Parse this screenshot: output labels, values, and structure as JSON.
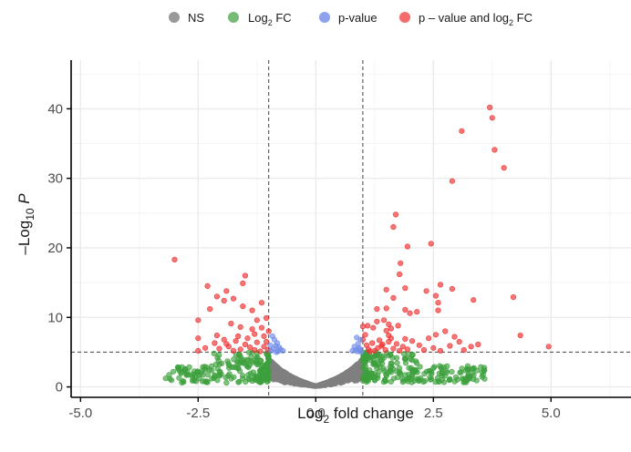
{
  "chart_data": {
    "type": "scatter",
    "title": "",
    "xlabel": "Log2 fold change",
    "ylabel": "-Log10 P",
    "xlim": [
      -5.2,
      6.7
    ],
    "ylim": [
      -1.5,
      47
    ],
    "x_ticks": [
      -5.0,
      -2.5,
      0.0,
      2.5,
      5.0
    ],
    "x_tick_labels": [
      "-5.0",
      "-2.5",
      "0.0",
      "2.5",
      "5.0"
    ],
    "y_ticks": [
      0,
      10,
      20,
      30,
      40
    ],
    "y_tick_labels": [
      "0",
      "10",
      "20",
      "30",
      "40"
    ],
    "grid": true,
    "legend_position": "top",
    "cutoffs": {
      "log2fc": [
        -1,
        1
      ],
      "neg_log10_p": 5
    },
    "legend": [
      {
        "key": "ns",
        "label": "NS",
        "color": "#808080"
      },
      {
        "key": "fc",
        "label": "Log2 FC",
        "label_main": "Log",
        "label_sub": "2",
        "label_tail": " FC",
        "color": "#3ca03c"
      },
      {
        "key": "p",
        "label": "p-value",
        "color": "#6f8be8"
      },
      {
        "key": "both",
        "label": "p – value and log2 FC",
        "label_main": "p – value and log",
        "label_sub": "2",
        "label_tail": " FC",
        "color": "#ee2c2c"
      }
    ],
    "series": [
      {
        "key": "both",
        "points": [
          [
            3.7,
            40.2
          ],
          [
            3.75,
            38.7
          ],
          [
            3.8,
            34.1
          ],
          [
            4.0,
            31.5
          ],
          [
            3.1,
            36.8
          ],
          [
            2.9,
            29.6
          ],
          [
            1.7,
            24.8
          ],
          [
            1.65,
            23.0
          ],
          [
            2.45,
            20.6
          ],
          [
            1.95,
            20.2
          ],
          [
            1.8,
            17.8
          ],
          [
            1.78,
            16.2
          ],
          [
            2.65,
            14.7
          ],
          [
            1.9,
            14.2
          ],
          [
            1.5,
            14.0
          ],
          [
            2.35,
            13.8
          ],
          [
            1.65,
            12.8
          ],
          [
            2.6,
            12.1
          ],
          [
            2.9,
            14.1
          ],
          [
            2.55,
            13.1
          ],
          [
            3.35,
            12.5
          ],
          [
            4.2,
            12.9
          ],
          [
            2.6,
            11.0
          ],
          [
            1.9,
            11.1
          ],
          [
            2.0,
            10.6
          ],
          [
            2.15,
            10.8
          ],
          [
            1.5,
            11.3
          ],
          [
            1.3,
            11.2
          ],
          [
            1.45,
            9.6
          ],
          [
            1.55,
            9.0
          ],
          [
            1.6,
            8.4
          ],
          [
            1.75,
            8.8
          ],
          [
            1.5,
            8.1
          ],
          [
            1.55,
            7.4
          ],
          [
            1.3,
            9.4
          ],
          [
            1.22,
            8.5
          ],
          [
            1.1,
            8.8
          ],
          [
            1.0,
            8.7
          ],
          [
            1.05,
            7.5
          ],
          [
            1.0,
            6.8
          ],
          [
            1.08,
            6.0
          ],
          [
            1.12,
            5.4
          ],
          [
            1.25,
            5.2
          ],
          [
            1.2,
            6.3
          ],
          [
            1.35,
            6.7
          ],
          [
            1.55,
            6.5
          ],
          [
            1.4,
            5.9
          ],
          [
            1.48,
            5.3
          ],
          [
            1.65,
            5.5
          ],
          [
            1.72,
            6.2
          ],
          [
            1.85,
            5.8
          ],
          [
            1.95,
            5.4
          ],
          [
            2.05,
            6.6
          ],
          [
            2.2,
            6.0
          ],
          [
            2.4,
            7.0
          ],
          [
            2.55,
            7.5
          ],
          [
            2.75,
            8.0
          ],
          [
            2.95,
            7.2
          ],
          [
            3.05,
            6.5
          ],
          [
            2.85,
            5.9
          ],
          [
            2.5,
            5.6
          ],
          [
            2.3,
            5.3
          ],
          [
            3.3,
            5.8
          ],
          [
            3.45,
            6.1
          ],
          [
            4.35,
            7.4
          ],
          [
            4.95,
            5.8
          ],
          [
            2.65,
            5.2
          ],
          [
            3.15,
            5.3
          ],
          [
            1.15,
            5.1
          ],
          [
            1.32,
            5.6
          ],
          [
            1.42,
            6.1
          ],
          [
            1.6,
            7.0
          ],
          [
            1.78,
            5.2
          ],
          [
            1.9,
            6.9
          ],
          [
            -3.0,
            18.3
          ],
          [
            -2.3,
            14.5
          ],
          [
            -1.5,
            16.0
          ],
          [
            -1.55,
            14.9
          ],
          [
            -1.9,
            13.8
          ],
          [
            -2.1,
            13.0
          ],
          [
            -1.95,
            12.4
          ],
          [
            -1.75,
            12.7
          ],
          [
            -1.15,
            12.1
          ],
          [
            -1.55,
            11.6
          ],
          [
            -1.35,
            11.0
          ],
          [
            -2.25,
            11.2
          ],
          [
            -2.5,
            9.6
          ],
          [
            -1.8,
            9.1
          ],
          [
            -1.25,
            9.6
          ],
          [
            -1.05,
            9.9
          ],
          [
            -1.6,
            8.6
          ],
          [
            -1.35,
            8.3
          ],
          [
            -1.15,
            8.5
          ],
          [
            -1.0,
            8.0
          ],
          [
            -1.3,
            7.6
          ],
          [
            -1.1,
            7.3
          ],
          [
            -1.45,
            7.0
          ],
          [
            -1.7,
            6.6
          ],
          [
            -1.95,
            6.8
          ],
          [
            -2.5,
            7.0
          ],
          [
            -2.15,
            6.3
          ],
          [
            -1.25,
            6.4
          ],
          [
            -1.05,
            6.5
          ],
          [
            -1.5,
            6.1
          ],
          [
            -1.85,
            5.8
          ],
          [
            -2.05,
            5.5
          ],
          [
            -1.6,
            5.4
          ],
          [
            -1.3,
            5.3
          ],
          [
            -1.1,
            5.8
          ],
          [
            -2.35,
            5.6
          ],
          [
            -2.5,
            5.2
          ],
          [
            -1.75,
            5.2
          ],
          [
            -1.4,
            5.7
          ],
          [
            -1.02,
            5.3
          ],
          [
            -1.18,
            5.1
          ],
          [
            -1.9,
            6.2
          ],
          [
            -2.1,
            7.4
          ],
          [
            -1.65,
            7.3
          ]
        ]
      },
      {
        "key": "p",
        "points": [
          [
            -0.95,
            5.2
          ],
          [
            -0.9,
            5.5
          ],
          [
            -0.85,
            5.9
          ],
          [
            -0.82,
            6.3
          ],
          [
            -0.88,
            6.8
          ],
          [
            -0.8,
            5.1
          ],
          [
            -0.75,
            5.4
          ],
          [
            -0.7,
            5.2
          ],
          [
            -0.92,
            7.3
          ],
          [
            -0.97,
            6.0
          ],
          [
            -0.78,
            5.7
          ],
          [
            -0.84,
            5.0
          ],
          [
            0.88,
            5.1
          ],
          [
            0.92,
            5.6
          ],
          [
            0.85,
            5.3
          ],
          [
            0.9,
            6.2
          ],
          [
            0.95,
            6.8
          ],
          [
            0.82,
            5.8
          ],
          [
            0.78,
            5.2
          ],
          [
            0.96,
            5.0
          ],
          [
            0.87,
            7.1
          ],
          [
            0.93,
            5.4
          ]
        ]
      }
    ],
    "generated_groups": [
      {
        "key": "ns",
        "count": 2300,
        "x_range": [
          -1.0,
          1.0
        ],
        "y_model": "vcurve",
        "description": "dense V-shaped cloud of non-significant genes"
      },
      {
        "key": "fc",
        "count": 430,
        "x_range": [
          -3.2,
          3.6
        ],
        "y_range": [
          0.6,
          5.0
        ],
        "description": "fold change beyond ±1 with -log10 p below 5"
      }
    ]
  }
}
